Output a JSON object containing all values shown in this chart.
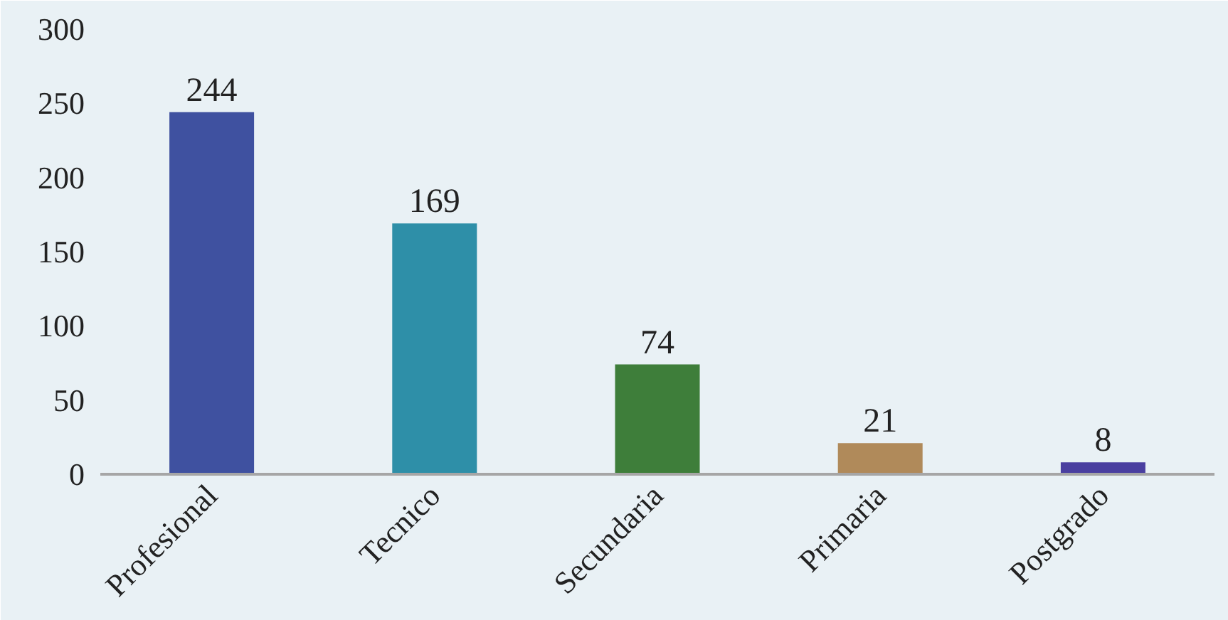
{
  "chart_data": {
    "type": "bar",
    "categories": [
      "Profesional",
      "Tecnico",
      "Secundaria",
      "Primaria",
      "Postgrado"
    ],
    "values": [
      244,
      169,
      74,
      21,
      8
    ],
    "colors": [
      "#3f51a0",
      "#2e8fa8",
      "#3e7e3a",
      "#b08a5a",
      "#4a3fa0"
    ],
    "ylim": [
      0,
      300
    ],
    "yticks": [
      0,
      50,
      100,
      150,
      200,
      250,
      300
    ],
    "grid": false,
    "data_labels": true
  }
}
